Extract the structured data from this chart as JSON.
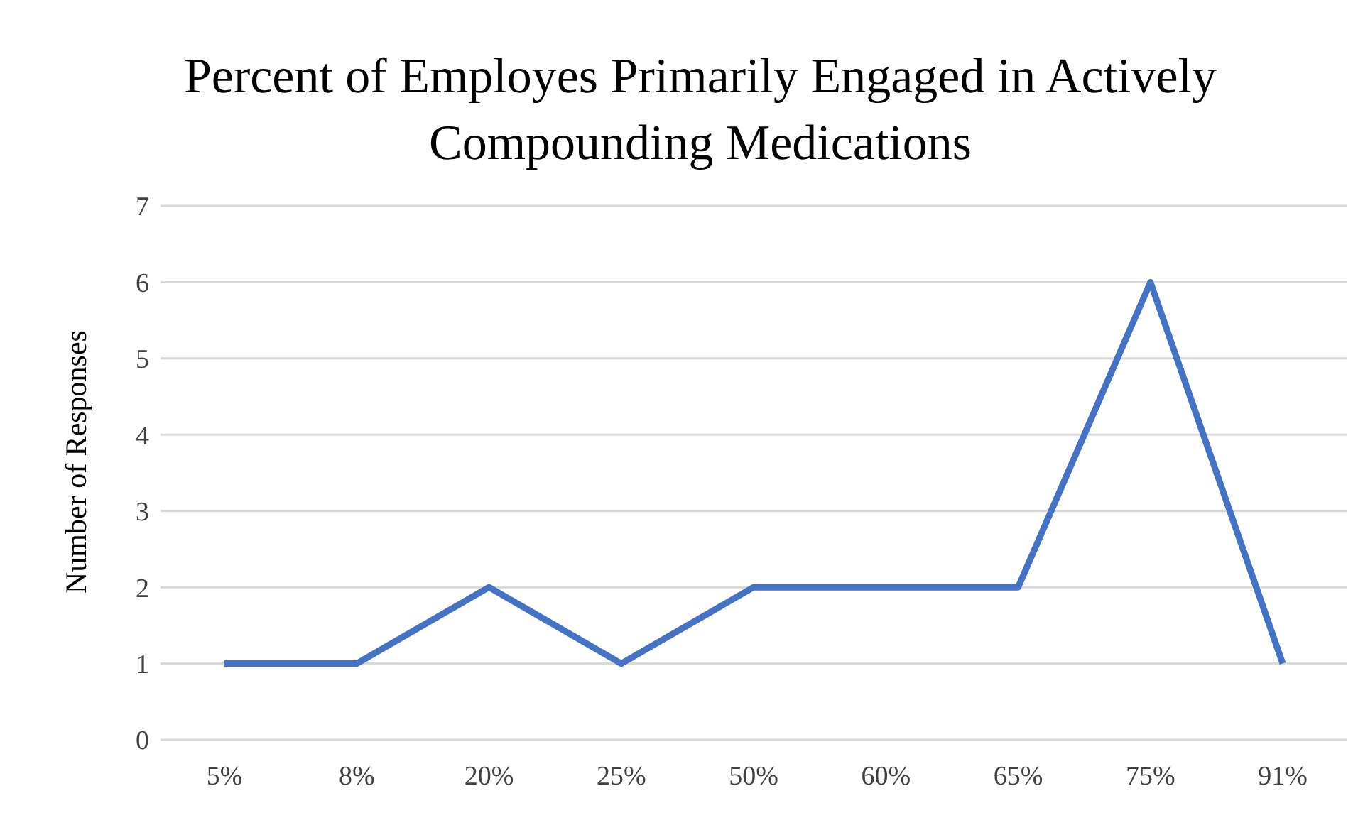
{
  "chart_data": {
    "type": "line",
    "title": "Percent of Employes Primarily Engaged in Actively Compounding Medications",
    "ylabel": "Number of Responses",
    "categories": [
      "5%",
      "8%",
      "20%",
      "25%",
      "50%",
      "60%",
      "65%",
      "75%",
      "91%"
    ],
    "series": [
      {
        "color": "#4472c4",
        "values": [
          1,
          1,
          2,
          1,
          2,
          2,
          2,
          6,
          1
        ]
      }
    ],
    "ylim": [
      0,
      7
    ],
    "yticks": [
      0,
      1,
      2,
      3,
      4,
      5,
      6,
      7
    ],
    "grid": "y",
    "legend": false,
    "marker": "none",
    "line_style": "solid"
  }
}
